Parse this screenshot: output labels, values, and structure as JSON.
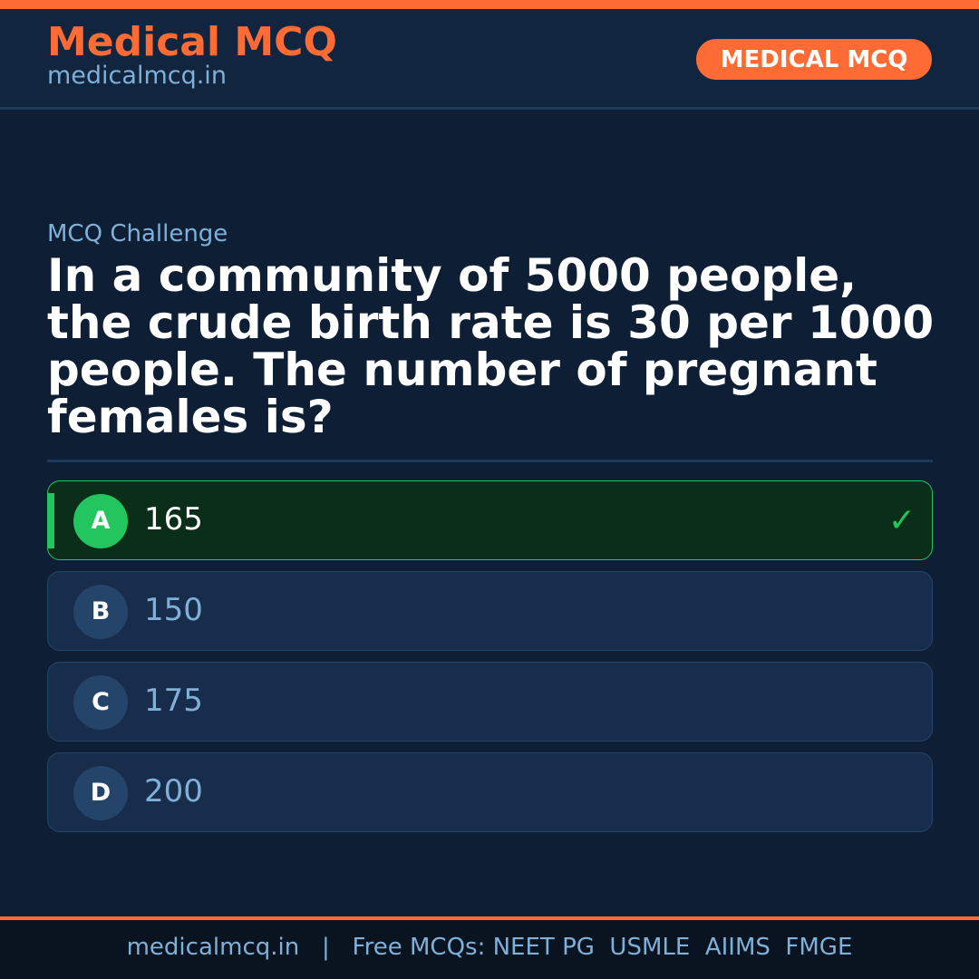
{
  "header": {
    "brand": "Medical MCQ",
    "site": "medicalmcq.in",
    "badge": "MEDICAL MCQ"
  },
  "colors": {
    "accent": "#ff6b35",
    "correct": "#22c55e",
    "background": "#0e1f35"
  },
  "question": {
    "label": "MCQ Challenge",
    "text": "In a community of 5000 people, the crude birth rate is 30 per 1000 people. The number of pregnant females is?"
  },
  "options": [
    {
      "letter": "A",
      "text": "165",
      "correct": true,
      "icon": "check-icon",
      "icon_glyph": "✓"
    },
    {
      "letter": "B",
      "text": "150",
      "correct": false
    },
    {
      "letter": "C",
      "text": "175",
      "correct": false
    },
    {
      "letter": "D",
      "text": "200",
      "correct": false
    }
  ],
  "footer": {
    "text": "medicalmcq.in   |   Free MCQs: NEET PG  USMLE  AIIMS  FMGE"
  }
}
